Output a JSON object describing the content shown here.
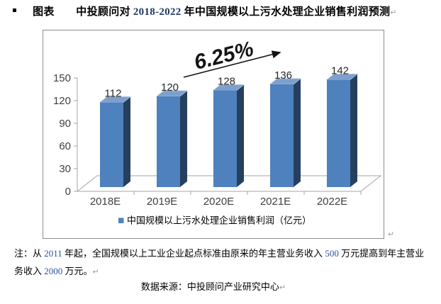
{
  "doc": {
    "bullet": "▪",
    "title": {
      "prefix": "图表　　中投顾问对 ",
      "years": "2018-2022",
      "suffix": " 年中国规模以上污水处理企业销售利润预测"
    },
    "note": {
      "p1": "注：从 ",
      "n1": "2011",
      "p2": " 年起，全国规模以上工业企业起点标准由原来的年主营业务收入 ",
      "n2": "500",
      "p3": " 万元提高到年主营业务收入 ",
      "n3": "2000",
      "p4": " 万元。"
    },
    "source": "数据来源：中投顾问产业研究中心",
    "pilcrow": "↵"
  },
  "chart_data": {
    "type": "bar",
    "variant": "3d-column",
    "title": "",
    "xlabel": "",
    "ylabel": "",
    "categories": [
      "2018E",
      "2019E",
      "2020E",
      "2021E",
      "2022E"
    ],
    "values": [
      112,
      120,
      128,
      136,
      142
    ],
    "series": [
      {
        "name": "中国规模以上污水处理企业销售利润（亿元）",
        "values": [
          112,
          120,
          128,
          136,
          142
        ]
      }
    ],
    "legend_label": "中国规模以上污水处理企业销售利润（亿元）",
    "legend_position": "bottom",
    "annotation": "6.25%",
    "ylim": [
      0,
      150
    ],
    "yticks": [
      0,
      30,
      60,
      90,
      120,
      150
    ],
    "grid": false,
    "colors": {
      "bar_front": "#4E81BD",
      "bar_side": "#25405F",
      "bar_top": "#7DA0CC",
      "bar_top_edge": "#A9C2DE",
      "axis": "#A6A6A6",
      "tick_label": "#404040",
      "value_label": "#262626",
      "annotation": "#141414",
      "legend_swatch": "#4E81BD",
      "legend_text": "#000000"
    }
  }
}
